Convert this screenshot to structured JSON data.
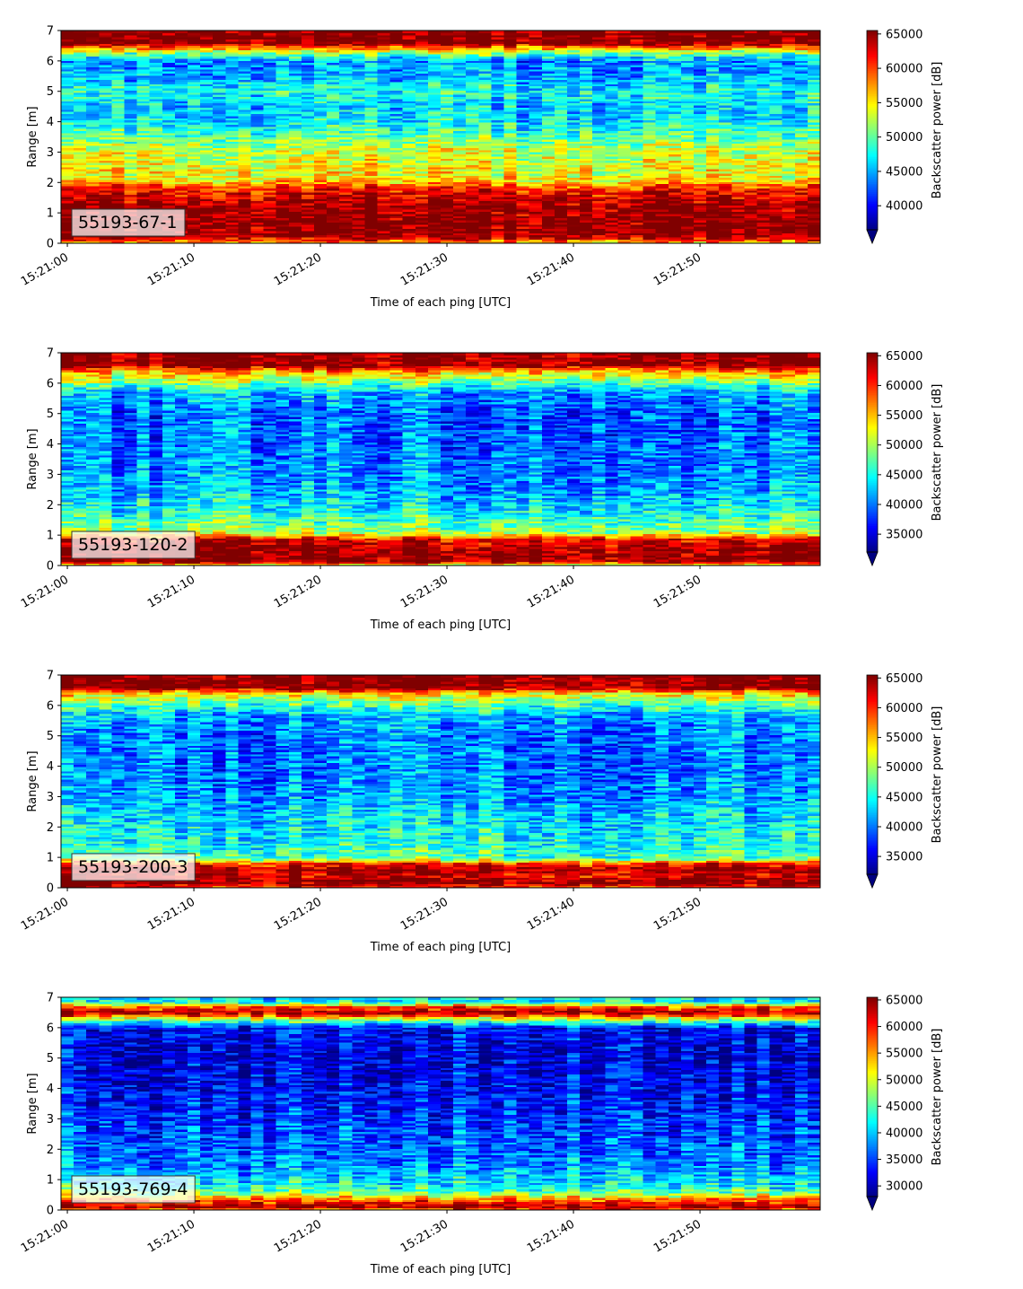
{
  "chart_data": [
    {
      "type": "heatmap",
      "label": "55193-67-1",
      "xlabel": "Time of each ping [UTC]",
      "ylabel": "Range [m]",
      "xticks": [
        "15:21:00",
        "15:21:10",
        "15:21:20",
        "15:21:30",
        "15:21:40",
        "15:21:50"
      ],
      "xlim": [
        "15:20:59.5",
        "15:21:59.5"
      ],
      "yticks": [
        0,
        1,
        2,
        3,
        4,
        5,
        6,
        7
      ],
      "ylim": [
        0,
        7
      ],
      "colorbar": {
        "label": "Backscatter power [dB]",
        "ticks": [
          40000,
          45000,
          50000,
          55000,
          60000,
          65000
        ],
        "range": [
          36500,
          65500
        ],
        "colormap": "jet",
        "extend": "min"
      },
      "profile": {
        "range_m": [
          0.0,
          0.25,
          0.3,
          0.7,
          1.2,
          1.7,
          1.9,
          2.1,
          2.5,
          3.0,
          3.5,
          4.0,
          4.5,
          5.0,
          5.5,
          6.0,
          6.3,
          6.6,
          7.0
        ],
        "power": [
          56000,
          65500,
          65500,
          65500,
          65000,
          62000,
          59000,
          55000,
          54000,
          53500,
          50000,
          47000,
          46000,
          48000,
          45000,
          44000,
          52000,
          65500,
          65500
        ]
      }
    },
    {
      "type": "heatmap",
      "label": "55193-120-2",
      "xlabel": "Time of each ping [UTC]",
      "ylabel": "Range [m]",
      "xticks": [
        "15:21:00",
        "15:21:10",
        "15:21:20",
        "15:21:30",
        "15:21:40",
        "15:21:50"
      ],
      "xlim": [
        "15:20:59.5",
        "15:21:59.5"
      ],
      "yticks": [
        0,
        1,
        2,
        3,
        4,
        5,
        6,
        7
      ],
      "ylim": [
        0,
        7
      ],
      "colorbar": {
        "label": "Backscatter power [dB]",
        "ticks": [
          35000,
          40000,
          45000,
          50000,
          55000,
          60000,
          65000
        ],
        "range": [
          32000,
          65500
        ],
        "colormap": "jet",
        "extend": "min"
      },
      "profile": {
        "range_m": [
          0.0,
          0.15,
          0.3,
          0.6,
          0.9,
          1.1,
          1.5,
          2.0,
          2.5,
          3.0,
          4.0,
          5.0,
          5.7,
          6.1,
          6.4,
          6.6,
          7.0
        ],
        "power": [
          52000,
          65500,
          65500,
          65000,
          62000,
          50000,
          47000,
          44000,
          42000,
          41000,
          40000,
          39500,
          42000,
          50000,
          56000,
          65500,
          65500
        ]
      }
    },
    {
      "type": "heatmap",
      "label": "55193-200-3",
      "xlabel": "Time of each ping [UTC]",
      "ylabel": "Range [m]",
      "xticks": [
        "15:21:00",
        "15:21:10",
        "15:21:20",
        "15:21:30",
        "15:21:40",
        "15:21:50"
      ],
      "xlim": [
        "15:20:59.5",
        "15:21:59.5"
      ],
      "yticks": [
        0,
        1,
        2,
        3,
        4,
        5,
        6,
        7
      ],
      "ylim": [
        0,
        7
      ],
      "colorbar": {
        "label": "Backscatter power [dB]",
        "ticks": [
          35000,
          40000,
          45000,
          50000,
          55000,
          60000,
          65000
        ],
        "range": [
          32000,
          65500
        ],
        "colormap": "jet",
        "extend": "min"
      },
      "profile": {
        "range_m": [
          0.0,
          0.2,
          0.4,
          0.6,
          0.8,
          1.0,
          1.5,
          2.0,
          2.5,
          3.0,
          4.0,
          5.0,
          5.7,
          6.1,
          6.4,
          6.6,
          7.0
        ],
        "power": [
          60000,
          65500,
          62000,
          65500,
          60000,
          47000,
          45000,
          44000,
          43000,
          41000,
          40000,
          40000,
          42000,
          48000,
          54000,
          65500,
          65500
        ]
      }
    },
    {
      "type": "heatmap",
      "label": "55193-769-4",
      "xlabel": "Time of each ping [UTC]",
      "ylabel": "Range [m]",
      "xticks": [
        "15:21:00",
        "15:21:10",
        "15:21:20",
        "15:21:30",
        "15:21:40",
        "15:21:50"
      ],
      "xlim": [
        "15:20:59.5",
        "15:21:59.5"
      ],
      "yticks": [
        0,
        1,
        2,
        3,
        4,
        5,
        6,
        7
      ],
      "ylim": [
        0,
        7
      ],
      "colorbar": {
        "label": "Backscatter power [dB]",
        "ticks": [
          30000,
          35000,
          40000,
          45000,
          50000,
          55000,
          60000,
          65000
        ],
        "range": [
          28000,
          65500
        ],
        "colormap": "jet",
        "extend": "min"
      },
      "profile": {
        "range_m": [
          0.0,
          0.1,
          0.2,
          0.35,
          0.5,
          0.7,
          1.0,
          1.5,
          2.0,
          3.0,
          4.0,
          5.0,
          6.0,
          6.3,
          6.5,
          6.7,
          6.85,
          7.0
        ],
        "power": [
          55000,
          65500,
          62000,
          58000,
          50000,
          44000,
          41000,
          38000,
          37000,
          35000,
          33000,
          32000,
          33000,
          50000,
          65500,
          58000,
          42000,
          42000
        ]
      }
    }
  ]
}
